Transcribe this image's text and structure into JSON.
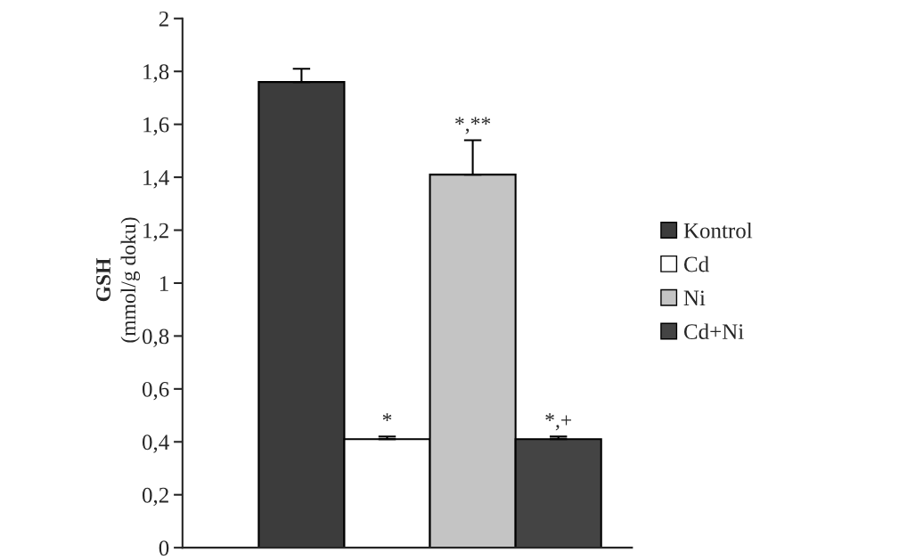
{
  "chart_data": {
    "type": "bar",
    "ylabel": "GSH\n(mmol/g doku)",
    "categories": [
      null
    ],
    "series": [
      {
        "name": "Kontrol",
        "color": "#3c3c3c",
        "values": [
          1.76
        ],
        "errors": [
          0.05
        ]
      },
      {
        "name": "Cd",
        "color": "#ffffff",
        "values": [
          0.41
        ],
        "errors": [
          0.01
        ]
      },
      {
        "name": "Ni",
        "color": "#c4c4c4",
        "values": [
          1.41
        ],
        "errors": [
          0.13
        ]
      },
      {
        "name": "Cd+Ni",
        "color": "#444444",
        "values": [
          0.41
        ],
        "errors": [
          0.01
        ]
      }
    ],
    "annotations": [
      "*",
      "*,**",
      "*,+"
    ],
    "ylim": [
      0,
      2
    ],
    "yticks": [
      0,
      {
        "value": 0.2,
        "label": "0,2"
      },
      {
        "value": 0.4,
        "label": "0,4"
      },
      {
        "value": 0.6,
        "label": "0,6"
      },
      {
        "value": 0.8,
        "label": "0,8"
      },
      1,
      {
        "value": 1.2,
        "label": "1,2"
      },
      {
        "value": 1.4,
        "label": "1,4"
      },
      {
        "value": 1.6,
        "label": "1,6"
      },
      {
        "value": 1.8,
        "label": "1,8"
      },
      2
    ],
    "legend": "right",
    "grid": false
  }
}
